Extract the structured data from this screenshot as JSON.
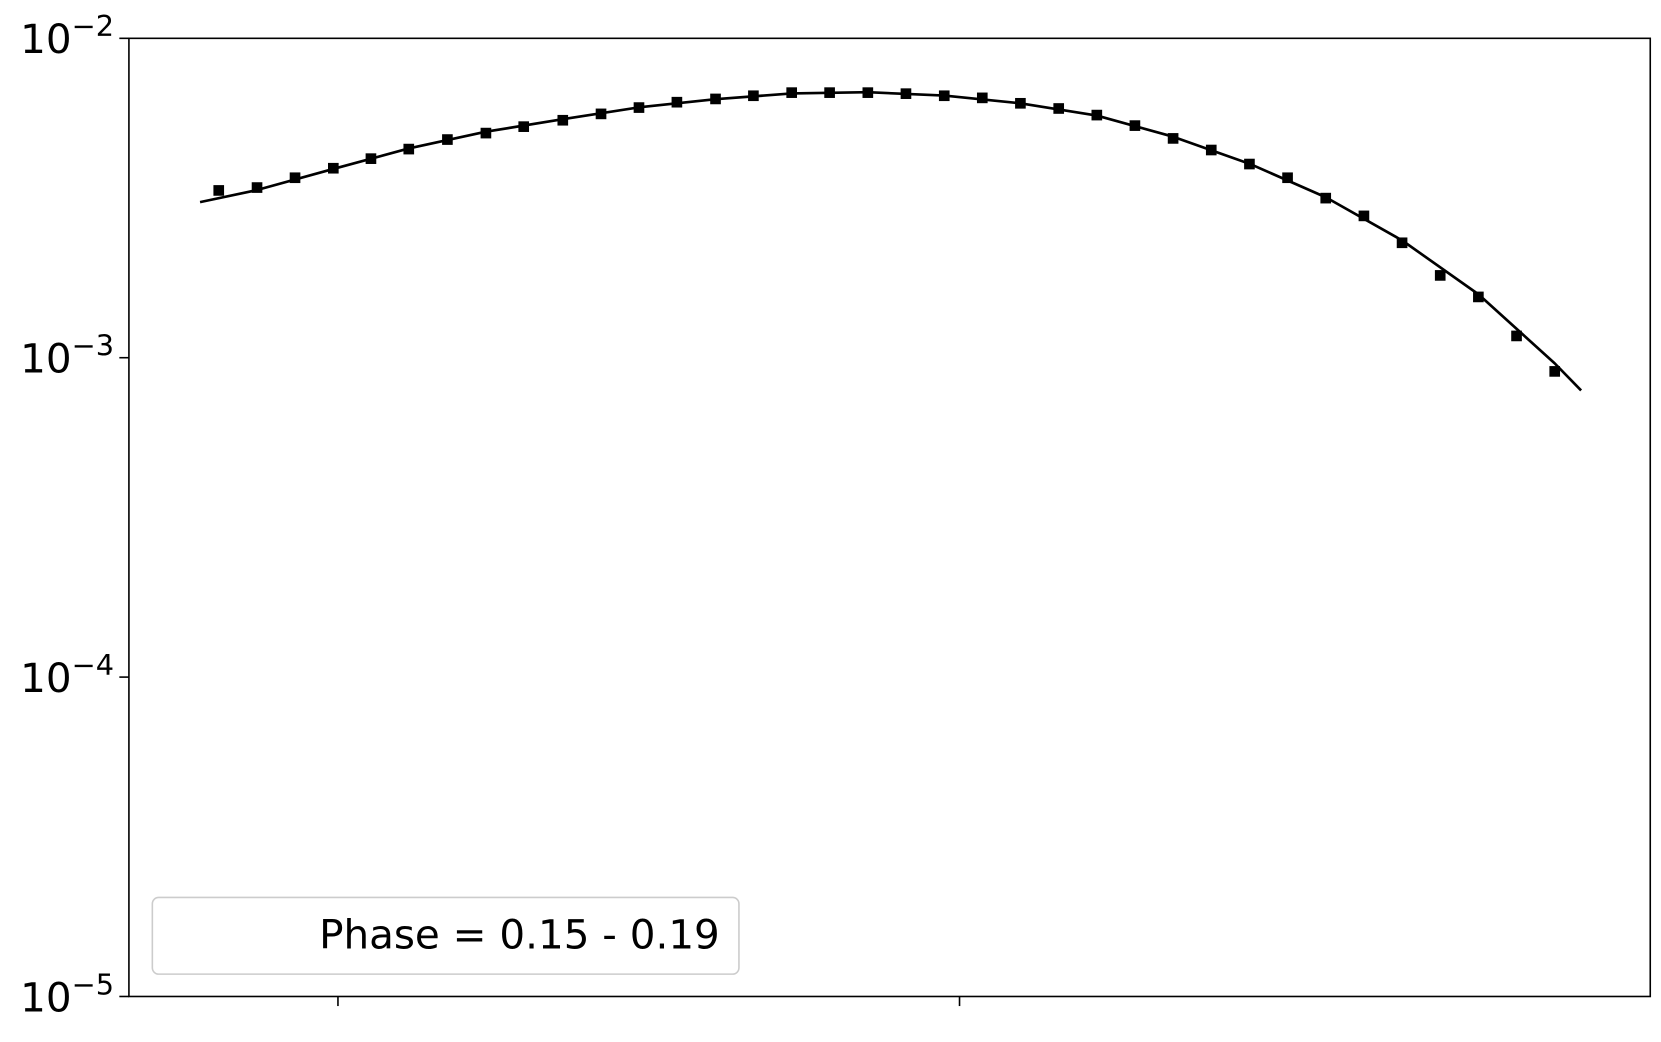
{
  "chart_data": {
    "type": "scatter",
    "xscale": "log",
    "yscale": "log",
    "xlim": [
      4.61,
      1292
    ],
    "ylim": [
      1e-05,
      0.01
    ],
    "xticks": [
      10,
      100
    ],
    "xticklabels": false,
    "yticks": [
      {
        "value": 0.01,
        "label": "10−2"
      },
      {
        "value": 0.001,
        "label": "10−3"
      },
      {
        "value": 0.0001,
        "label": "10−4"
      },
      {
        "value": 1e-05,
        "label": "10−5"
      }
    ],
    "grid": false,
    "series": [
      {
        "kind": "points",
        "color": "#000000",
        "x": [
          6.43,
          7.41,
          8.53,
          9.83,
          11.3,
          13.0,
          15.0,
          17.3,
          19.9,
          23.0,
          26.5,
          30.5,
          35.1,
          40.5,
          46.6,
          53.7,
          61.8,
          71.2,
          82.0,
          94.5,
          108.8,
          125.3,
          144.4,
          166.3,
          191.5,
          220.6,
          254.1,
          292.7,
          337.1,
          388.3,
          447.3,
          515.2,
          593.4,
          683.5,
          787.3,
          906.9
        ],
        "values": [
          0.00334,
          0.00341,
          0.00366,
          0.00392,
          0.0042,
          0.0045,
          0.00482,
          0.00505,
          0.00529,
          0.00554,
          0.0058,
          0.00607,
          0.00631,
          0.00646,
          0.00661,
          0.00676,
          0.00676,
          0.00676,
          0.00671,
          0.00661,
          0.00651,
          0.00626,
          0.00603,
          0.00575,
          0.00533,
          0.00486,
          0.00447,
          0.00404,
          0.00366,
          0.00316,
          0.00278,
          0.00229,
          0.00181,
          0.00155,
          0.00117,
          0.000906
        ]
      },
      {
        "kind": "line",
        "color": "#000000",
        "x": [
          6.0,
          7.41,
          9.83,
          13.0,
          17.3,
          23.0,
          30.5,
          40.5,
          53.7,
          71.2,
          94.5,
          125.3,
          166.3,
          220.6,
          292.7,
          388.3,
          515.2,
          683.5,
          906.9,
          1000
        ],
        "values": [
          0.00307,
          0.00335,
          0.0039,
          0.00452,
          0.0051,
          0.00558,
          0.00608,
          0.00645,
          0.00672,
          0.00678,
          0.00662,
          0.00626,
          0.00573,
          0.00492,
          0.00405,
          0.00318,
          0.00233,
          0.00158,
          0.00096,
          0.00079
        ]
      }
    ],
    "legend": {
      "text": "Phase = 0.15 - 0.19",
      "loc": "lower left"
    }
  }
}
